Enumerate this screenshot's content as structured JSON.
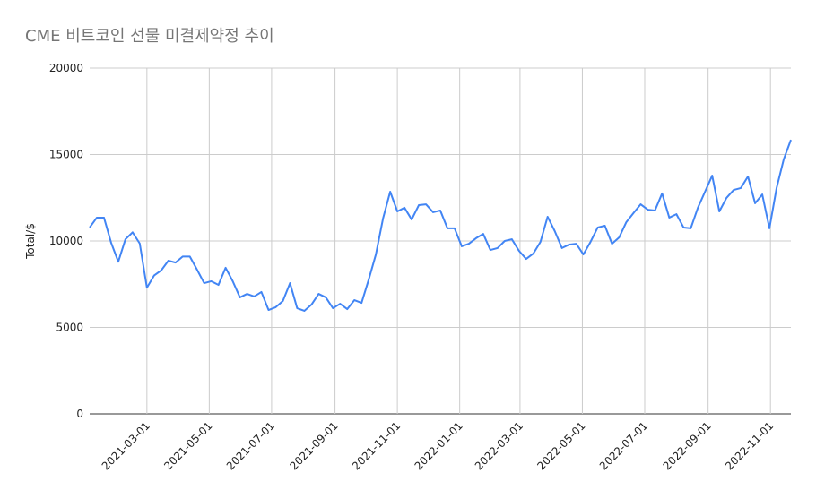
{
  "chart_data": {
    "type": "line",
    "title": "CME 비트코인 선물 미결제약정 추이",
    "y_label": "Total/$",
    "x": [
      "2021-01-04",
      "2021-01-11",
      "2021-01-18",
      "2021-01-25",
      "2021-02-01",
      "2021-02-08",
      "2021-02-15",
      "2021-02-22",
      "2021-03-01",
      "2021-03-08",
      "2021-03-15",
      "2021-03-22",
      "2021-03-29",
      "2021-04-05",
      "2021-04-12",
      "2021-04-19",
      "2021-04-26",
      "2021-05-03",
      "2021-05-10",
      "2021-05-17",
      "2021-05-24",
      "2021-05-31",
      "2021-06-07",
      "2021-06-14",
      "2021-06-21",
      "2021-06-28",
      "2021-07-05",
      "2021-07-12",
      "2021-07-19",
      "2021-07-26",
      "2021-08-02",
      "2021-08-09",
      "2021-08-16",
      "2021-08-23",
      "2021-08-30",
      "2021-09-06",
      "2021-09-13",
      "2021-09-20",
      "2021-09-27",
      "2021-10-04",
      "2021-10-11",
      "2021-10-18",
      "2021-10-25",
      "2021-11-01",
      "2021-11-08",
      "2021-11-15",
      "2021-11-22",
      "2021-11-29",
      "2021-12-06",
      "2021-12-13",
      "2021-12-20",
      "2021-12-27",
      "2022-01-03",
      "2022-01-10",
      "2022-01-17",
      "2022-01-24",
      "2022-01-31",
      "2022-02-07",
      "2022-02-14",
      "2022-02-21",
      "2022-02-28",
      "2022-03-07",
      "2022-03-14",
      "2022-03-21",
      "2022-03-28",
      "2022-04-04",
      "2022-04-11",
      "2022-04-18",
      "2022-04-25",
      "2022-05-02",
      "2022-05-09",
      "2022-05-16",
      "2022-05-23",
      "2022-05-30",
      "2022-06-06",
      "2022-06-13",
      "2022-06-20",
      "2022-06-27",
      "2022-07-04",
      "2022-07-11",
      "2022-07-18",
      "2022-07-25",
      "2022-08-01",
      "2022-08-08",
      "2022-08-15",
      "2022-08-22",
      "2022-08-29",
      "2022-09-05",
      "2022-09-12",
      "2022-09-19",
      "2022-09-26",
      "2022-10-03",
      "2022-10-10",
      "2022-10-17",
      "2022-10-24",
      "2022-10-31",
      "2022-11-07",
      "2022-11-14",
      "2022-11-21"
    ],
    "series": [
      {
        "name": "Total/$",
        "color": "#4285f4",
        "values": [
          10780,
          11350,
          11350,
          9900,
          8800,
          10100,
          10500,
          9850,
          7300,
          8000,
          8300,
          8860,
          8750,
          9100,
          9100,
          8350,
          7560,
          7670,
          7460,
          8450,
          7670,
          6740,
          6940,
          6790,
          7050,
          6010,
          6170,
          6530,
          7560,
          6110,
          5960,
          6320,
          6940,
          6740,
          6110,
          6370,
          6060,
          6580,
          6420,
          7770,
          9220,
          11300,
          12850,
          11710,
          11920,
          11240,
          12070,
          12120,
          11660,
          11760,
          10730,
          10730,
          9690,
          9840,
          10160,
          10410,
          9480,
          9590,
          10000,
          10100,
          9430,
          8960,
          9270,
          9950,
          11400,
          10570,
          9590,
          9790,
          9840,
          9220,
          9950,
          10780,
          10880,
          9840,
          10210,
          11090,
          11610,
          12120,
          11810,
          11760,
          12750,
          11350,
          11550,
          10780,
          10730,
          11920,
          12850,
          13780,
          11710,
          12490,
          12950,
          13060,
          13730,
          12180,
          12690,
          10730,
          13060,
          14720,
          15850
        ]
      }
    ],
    "xlim": [
      "2021-01-04",
      "2022-11-21"
    ],
    "xticks": [
      "2021-03-01",
      "2021-05-01",
      "2021-07-01",
      "2021-09-01",
      "2021-11-01",
      "2022-01-01",
      "2022-03-01",
      "2022-05-01",
      "2022-07-01",
      "2022-09-01",
      "2022-11-01"
    ],
    "ylim": [
      0,
      20000
    ],
    "yticks": [
      0,
      5000,
      10000,
      15000,
      20000
    ],
    "grid": true
  }
}
